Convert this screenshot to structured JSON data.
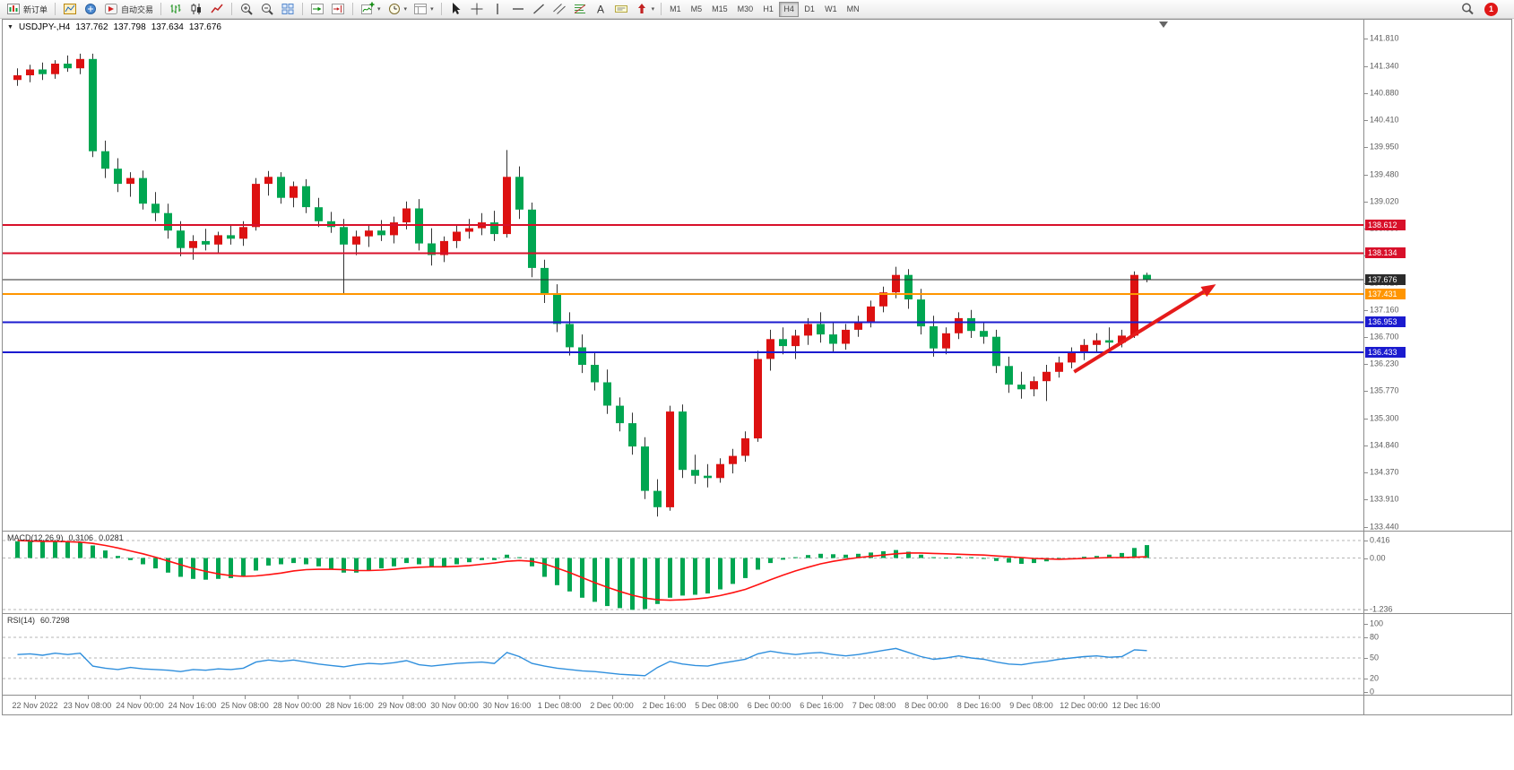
{
  "app": {
    "notification_count": "1"
  },
  "icons": {
    "one_click_trading": "▼",
    "caret_down": "▾"
  },
  "toolbar": {
    "tool_groups": [
      {
        "items": [
          {
            "name": "new-order-button",
            "icon": "new-order-icon",
            "label": "新订单"
          }
        ]
      },
      {
        "items": [
          {
            "name": "charts-button",
            "icon": "chart-window-icon"
          },
          {
            "name": "profiles-button",
            "icon": "profiles-icon"
          },
          {
            "name": "auto-trading-button",
            "icon": "autotrade-icon",
            "label": "自动交易"
          }
        ]
      },
      {
        "items": [
          {
            "name": "bar-chart-button",
            "icon": "bars-icon"
          },
          {
            "name": "candlestick-chart-button",
            "icon": "candles-icon"
          },
          {
            "name": "line-chart-button",
            "icon": "line-chart-icon"
          }
        ]
      },
      {
        "items": [
          {
            "name": "zoom-in-button",
            "icon": "zoom-in-icon"
          },
          {
            "name": "zoom-out-button",
            "icon": "zoom-out-icon"
          },
          {
            "name": "tile-windows-button",
            "icon": "tile-windows-icon"
          }
        ]
      },
      {
        "items": [
          {
            "name": "auto-scroll-button",
            "icon": "auto-scroll-icon"
          },
          {
            "name": "chart-shift-button",
            "icon": "chart-shift-icon"
          }
        ]
      },
      {
        "items": [
          {
            "name": "indicators-button",
            "icon": "indicators-icon",
            "caret": true
          },
          {
            "name": "periods-button",
            "icon": "clock-icon",
            "caret": true
          },
          {
            "name": "templates-button",
            "icon": "template-icon",
            "caret": true
          }
        ]
      },
      {
        "items": [
          {
            "name": "cursor-button",
            "icon": "cursor-icon"
          },
          {
            "name": "crosshair-button",
            "icon": "crosshair-icon"
          },
          {
            "name": "vertical-line-button",
            "icon": "vline-icon"
          },
          {
            "name": "horizontal-line-button",
            "icon": "hline-icon"
          },
          {
            "name": "trendline-button",
            "icon": "trendline-icon"
          },
          {
            "name": "channel-button",
            "icon": "channel-icon"
          },
          {
            "name": "fibonacci-button",
            "icon": "fibonacci-icon"
          },
          {
            "name": "text-button",
            "icon": "text-icon"
          },
          {
            "name": "label-button",
            "icon": "label-icon"
          },
          {
            "name": "arrows-button",
            "icon": "arrow-icon",
            "caret": true
          }
        ]
      }
    ],
    "timeframes": [
      "M1",
      "M5",
      "M15",
      "M30",
      "H1",
      "H4",
      "D1",
      "W1",
      "MN"
    ],
    "active_timeframe": "H4"
  },
  "chart_header": {
    "symbol_period": "USDJPY-,H4",
    "open": "137.762",
    "high": "137.798",
    "low": "137.634",
    "close": "137.676"
  },
  "chart_data": {
    "type": "candlestick",
    "symbol": "USDJPY-",
    "timeframe": "H4",
    "up_color": "#dd1111",
    "down_color": "#00a651",
    "wick_color": "#333333",
    "candles": [
      [
        141.1,
        141.3,
        141.0,
        141.18
      ],
      [
        141.18,
        141.36,
        141.06,
        141.28
      ],
      [
        141.28,
        141.4,
        141.1,
        141.2
      ],
      [
        141.2,
        141.44,
        141.12,
        141.38
      ],
      [
        141.38,
        141.52,
        141.24,
        141.3
      ],
      [
        141.3,
        141.55,
        141.2,
        141.46
      ],
      [
        141.46,
        141.55,
        139.78,
        139.88
      ],
      [
        139.88,
        140.06,
        139.42,
        139.58
      ],
      [
        139.58,
        139.76,
        139.18,
        139.32
      ],
      [
        139.32,
        139.52,
        139.1,
        139.42
      ],
      [
        139.42,
        139.55,
        138.88,
        138.98
      ],
      [
        138.98,
        139.18,
        138.68,
        138.82
      ],
      [
        138.82,
        138.98,
        138.38,
        138.52
      ],
      [
        138.52,
        138.68,
        138.08,
        138.22
      ],
      [
        138.22,
        138.44,
        138.02,
        138.34
      ],
      [
        138.34,
        138.55,
        138.18,
        138.28
      ],
      [
        138.28,
        138.5,
        138.12,
        138.44
      ],
      [
        138.44,
        138.6,
        138.28,
        138.38
      ],
      [
        138.38,
        138.68,
        138.26,
        138.58
      ],
      [
        138.58,
        139.42,
        138.52,
        139.32
      ],
      [
        139.32,
        139.54,
        139.12,
        139.44
      ],
      [
        139.44,
        139.52,
        138.98,
        139.08
      ],
      [
        139.08,
        139.36,
        138.92,
        139.28
      ],
      [
        139.28,
        139.4,
        138.82,
        138.92
      ],
      [
        138.92,
        139.08,
        138.58,
        138.68
      ],
      [
        138.68,
        138.84,
        138.48,
        138.58
      ],
      [
        138.58,
        138.72,
        137.42,
        138.28
      ],
      [
        138.28,
        138.52,
        138.1,
        138.42
      ],
      [
        138.42,
        138.62,
        138.24,
        138.52
      ],
      [
        138.52,
        138.7,
        138.34,
        138.44
      ],
      [
        138.44,
        138.76,
        138.3,
        138.66
      ],
      [
        138.66,
        139.02,
        138.54,
        138.9
      ],
      [
        138.9,
        139.06,
        138.18,
        138.3
      ],
      [
        138.3,
        138.56,
        137.92,
        138.1
      ],
      [
        138.1,
        138.42,
        137.98,
        138.34
      ],
      [
        138.34,
        138.62,
        138.22,
        138.5
      ],
      [
        138.5,
        138.72,
        138.38,
        138.56
      ],
      [
        138.56,
        138.82,
        138.44,
        138.66
      ],
      [
        138.66,
        138.86,
        138.34,
        138.46
      ],
      [
        138.46,
        139.9,
        138.4,
        139.44
      ],
      [
        139.44,
        139.62,
        138.72,
        138.88
      ],
      [
        138.88,
        139.0,
        137.72,
        137.88
      ],
      [
        137.88,
        138.02,
        137.28,
        137.42
      ],
      [
        137.42,
        137.6,
        136.78,
        136.92
      ],
      [
        136.92,
        137.12,
        136.38,
        136.52
      ],
      [
        136.52,
        136.74,
        136.08,
        136.22
      ],
      [
        136.22,
        136.44,
        135.78,
        135.92
      ],
      [
        135.92,
        136.14,
        135.38,
        135.52
      ],
      [
        135.52,
        135.66,
        135.08,
        135.22
      ],
      [
        135.22,
        135.4,
        134.68,
        134.82
      ],
      [
        134.82,
        134.98,
        133.92,
        134.06
      ],
      [
        134.06,
        134.26,
        133.62,
        133.78
      ],
      [
        133.78,
        135.52,
        133.72,
        135.42
      ],
      [
        135.42,
        135.54,
        134.28,
        134.42
      ],
      [
        134.42,
        134.68,
        134.18,
        134.32
      ],
      [
        134.32,
        134.52,
        134.12,
        134.28
      ],
      [
        134.28,
        134.62,
        134.2,
        134.52
      ],
      [
        134.52,
        134.78,
        134.36,
        134.66
      ],
      [
        134.66,
        135.08,
        134.56,
        134.96
      ],
      [
        134.96,
        136.46,
        134.9,
        136.32
      ],
      [
        136.32,
        136.82,
        136.12,
        136.66
      ],
      [
        136.66,
        136.86,
        136.4,
        136.54
      ],
      [
        136.54,
        136.82,
        136.32,
        136.72
      ],
      [
        136.72,
        137.02,
        136.56,
        136.92
      ],
      [
        136.92,
        137.12,
        136.6,
        136.74
      ],
      [
        136.74,
        136.96,
        136.44,
        136.58
      ],
      [
        136.58,
        136.92,
        136.48,
        136.82
      ],
      [
        136.82,
        137.06,
        136.7,
        136.96
      ],
      [
        136.96,
        137.32,
        136.86,
        137.22
      ],
      [
        137.22,
        137.56,
        137.12,
        137.46
      ],
      [
        137.46,
        137.9,
        137.36,
        137.76
      ],
      [
        137.76,
        137.86,
        137.18,
        137.34
      ],
      [
        137.34,
        137.52,
        136.74,
        136.88
      ],
      [
        136.88,
        137.06,
        136.36,
        136.5
      ],
      [
        136.5,
        136.86,
        136.4,
        136.76
      ],
      [
        136.76,
        137.12,
        136.66,
        137.02
      ],
      [
        137.02,
        137.16,
        136.68,
        136.8
      ],
      [
        136.8,
        136.96,
        136.58,
        136.7
      ],
      [
        136.7,
        136.82,
        136.08,
        136.2
      ],
      [
        136.2,
        136.36,
        135.74,
        135.88
      ],
      [
        135.88,
        136.1,
        135.64,
        135.8
      ],
      [
        135.8,
        136.02,
        135.68,
        135.94
      ],
      [
        135.94,
        136.22,
        135.6,
        136.1
      ],
      [
        136.1,
        136.36,
        136.0,
        136.26
      ],
      [
        136.26,
        136.52,
        136.16,
        136.42
      ],
      [
        136.42,
        136.66,
        136.3,
        136.56
      ],
      [
        136.56,
        136.76,
        136.44,
        136.64
      ],
      [
        136.64,
        136.86,
        136.5,
        136.6
      ],
      [
        136.6,
        136.82,
        136.52,
        136.72
      ],
      [
        136.72,
        137.82,
        136.68,
        137.76
      ],
      [
        137.762,
        137.798,
        137.634,
        137.676
      ]
    ],
    "price_axis_labels": [
      "141.810",
      "141.340",
      "140.880",
      "140.410",
      "139.950",
      "139.480",
      "139.020",
      "138.550",
      "138.090",
      "137.620",
      "137.160",
      "136.700",
      "136.230",
      "135.770",
      "135.300",
      "134.840",
      "134.370",
      "133.910",
      "133.440"
    ],
    "time_axis_labels": [
      "22 Nov 2022",
      "23 Nov 08:00",
      "24 Nov 00:00",
      "24 Nov 16:00",
      "25 Nov 08:00",
      "28 Nov 00:00",
      "28 Nov 16:00",
      "29 Nov 08:00",
      "30 Nov 00:00",
      "30 Nov 16:00",
      "1 Dec 08:00",
      "2 Dec 00:00",
      "2 Dec 16:00",
      "5 Dec 08:00",
      "6 Dec 00:00",
      "6 Dec 16:00",
      "7 Dec 08:00",
      "8 Dec 00:00",
      "8 Dec 16:00",
      "9 Dec 08:00",
      "12 Dec 00:00",
      "12 Dec 16:00"
    ],
    "hlines": [
      {
        "price": 138.612,
        "label": "138.612",
        "color": "#d8102a",
        "width": 2
      },
      {
        "price": 138.134,
        "label": "138.134",
        "color": "#d8102a",
        "width": 2
      },
      {
        "price": 137.676,
        "label": "137.676",
        "color": "#2b2b2b",
        "width": 1
      },
      {
        "price": 137.431,
        "label": "137.431",
        "color": "#ff9500",
        "width": 2
      },
      {
        "price": 136.953,
        "label": "136.953",
        "color": "#1b1bcf",
        "width": 2
      },
      {
        "price": 136.433,
        "label": "136.433",
        "color": "#1b1bcf",
        "width": 2
      }
    ],
    "annotation_arrow": {
      "from_candle": 84.2,
      "from_price": 136.1,
      "to_candle": 95.5,
      "to_price": 137.6,
      "color": "#e51b1b",
      "width": 4
    },
    "indicators": {
      "macd": {
        "label": "MACD(12,26,9)",
        "value": "0.3106",
        "signal_value": "0.0281",
        "axis_labels": [
          "0.416",
          "0.00",
          "-1.236"
        ],
        "levels": [
          0.416,
          0,
          -1.236
        ],
        "histogram_color": "#00a651",
        "signal_color": "#ff1111",
        "histogram": [
          0.4,
          0.41,
          0.4,
          0.39,
          0.4,
          0.38,
          0.3,
          0.18,
          0.05,
          -0.05,
          -0.15,
          -0.25,
          -0.35,
          -0.45,
          -0.5,
          -0.52,
          -0.5,
          -0.48,
          -0.45,
          -0.3,
          -0.18,
          -0.15,
          -0.12,
          -0.15,
          -0.2,
          -0.28,
          -0.35,
          -0.35,
          -0.3,
          -0.25,
          -0.2,
          -0.12,
          -0.15,
          -0.2,
          -0.2,
          -0.15,
          -0.1,
          -0.05,
          -0.05,
          0.08,
          0.02,
          -0.2,
          -0.45,
          -0.65,
          -0.8,
          -0.95,
          -1.05,
          -1.15,
          -1.2,
          -1.24,
          -1.22,
          -1.1,
          -0.95,
          -0.9,
          -0.88,
          -0.85,
          -0.75,
          -0.62,
          -0.48,
          -0.28,
          -0.12,
          -0.04,
          0.02,
          0.07,
          0.1,
          0.09,
          0.08,
          0.1,
          0.13,
          0.16,
          0.19,
          0.15,
          0.08,
          0.02,
          0.01,
          0.03,
          0.02,
          -0.02,
          -0.07,
          -0.11,
          -0.14,
          -0.12,
          -0.08,
          -0.04,
          0.0,
          0.03,
          0.05,
          0.08,
          0.12,
          0.24,
          0.31
        ],
        "signal": [
          0.42,
          0.41,
          0.4,
          0.4,
          0.39,
          0.38,
          0.35,
          0.3,
          0.24,
          0.17,
          0.1,
          0.02,
          -0.07,
          -0.16,
          -0.25,
          -0.32,
          -0.38,
          -0.42,
          -0.44,
          -0.43,
          -0.4,
          -0.36,
          -0.31,
          -0.28,
          -0.27,
          -0.27,
          -0.28,
          -0.3,
          -0.3,
          -0.29,
          -0.27,
          -0.24,
          -0.22,
          -0.21,
          -0.21,
          -0.2,
          -0.18,
          -0.15,
          -0.12,
          -0.08,
          -0.06,
          -0.08,
          -0.14,
          -0.24,
          -0.35,
          -0.47,
          -0.59,
          -0.7,
          -0.8,
          -0.89,
          -0.96,
          -1.0,
          -1.01,
          -1.0,
          -0.98,
          -0.95,
          -0.9,
          -0.83,
          -0.75,
          -0.64,
          -0.52,
          -0.41,
          -0.31,
          -0.22,
          -0.14,
          -0.08,
          -0.03,
          0.01,
          0.04,
          0.07,
          0.1,
          0.12,
          0.12,
          0.11,
          0.1,
          0.09,
          0.08,
          0.07,
          0.05,
          0.03,
          0.01,
          -0.01,
          -0.02,
          -0.03,
          -0.02,
          -0.01,
          0.0,
          0.01,
          0.01,
          0.02,
          0.03
        ]
      },
      "rsi": {
        "label": "RSI(14)",
        "value": "60.7298",
        "axis_labels": [
          "100",
          "80",
          "50",
          "20",
          "0"
        ],
        "levels": [
          80,
          50,
          20
        ],
        "line_color": "#2f8fdd",
        "values": [
          55,
          56,
          54,
          57,
          55,
          57,
          38,
          35,
          33,
          36,
          34,
          33,
          32,
          30,
          33,
          32,
          34,
          33,
          35,
          44,
          47,
          45,
          47,
          44,
          41,
          39,
          37,
          40,
          42,
          41,
          43,
          46,
          40,
          38,
          40,
          42,
          43,
          44,
          42,
          58,
          52,
          42,
          38,
          35,
          33,
          31,
          30,
          28,
          26,
          25,
          24,
          36,
          45,
          41,
          39,
          38,
          42,
          45,
          48,
          56,
          60,
          57,
          55,
          57,
          58,
          55,
          53,
          55,
          58,
          61,
          64,
          58,
          52,
          48,
          50,
          53,
          50,
          48,
          44,
          41,
          40,
          43,
          45,
          48,
          50,
          52,
          53,
          51,
          52,
          62,
          60.73
        ]
      }
    }
  }
}
